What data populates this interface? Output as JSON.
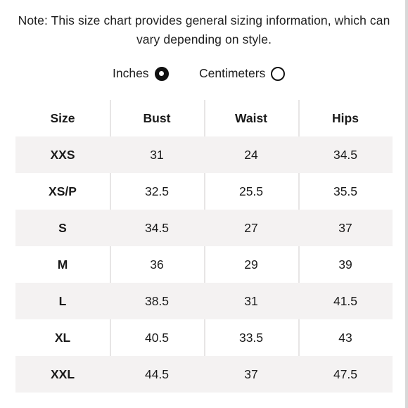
{
  "note": "Note: This size chart provides general sizing information, which can vary depending on style.",
  "units": {
    "inches_label": "Inches",
    "centimeters_label": "Centimeters",
    "selected": "Inches"
  },
  "table": {
    "headers": [
      "Size",
      "Bust",
      "Waist",
      "Hips"
    ],
    "rows": [
      [
        "XXS",
        "31",
        "24",
        "34.5"
      ],
      [
        "XS/P",
        "32.5",
        "25.5",
        "35.5"
      ],
      [
        "S",
        "34.5",
        "27",
        "37"
      ],
      [
        "M",
        "36",
        "29",
        "39"
      ],
      [
        "L",
        "38.5",
        "31",
        "41.5"
      ],
      [
        "XL",
        "40.5",
        "33.5",
        "43"
      ],
      [
        "XXL",
        "44.5",
        "37",
        "47.5"
      ]
    ]
  },
  "colors": {
    "row_shade": "#f4f2f2",
    "divider": "#e7e5e5",
    "text": "#1a1a1a"
  }
}
